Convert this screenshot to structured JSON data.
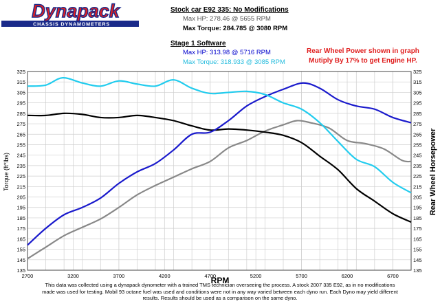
{
  "logo": {
    "brand": "Dynapack",
    "tagline": "CHASSIS DYNAMOMETERS"
  },
  "header": {
    "stock_title": "Stock car E92 335: No Modifications",
    "stock_hp": "Max HP: 278.46 @ 5655 RPM",
    "stock_torque": "Max Torque: 284.785 @ 3080 RPM",
    "stage_title": "Stage 1 Software",
    "stage_hp": "Max HP: 313.98 @ 5716 RPM",
    "stage_torque": "Max Torque: 318.933 @ 3085 RPM"
  },
  "note": {
    "line1": "Rear Wheel Power shown in graph",
    "line2": "Mutiply By 17% to get Engine HP."
  },
  "footer": {
    "line1": "This data was collected using a dynapack dynometer with a trained TMS technician overseeing the process.  A stock 2007 335 E92,  as in no modifications",
    "line2": "made was used for testing.  Mobil 93 octane fuel was used and conditions were not in any way varied between each dyno run. Each Dyno may yield different",
    "line3": "results. Results should be used as a comparison on the same dyno."
  },
  "colors": {
    "stock_hp": "#888888",
    "stock_torque": "#000000",
    "stage_hp": "#1a1acc",
    "stage_torque": "#22ccee",
    "grid": "#cfcfcf",
    "logo_red": "#e02020",
    "logo_blue": "#1a2a8a"
  },
  "chart_data": {
    "type": "line",
    "title": "",
    "xlabel": "RPM",
    "ylabel_left": "Torque (ft*lbs)",
    "ylabel_right": "Rear Wheel Horsepower",
    "xlim": [
      2700,
      6900
    ],
    "ylim": [
      135,
      325
    ],
    "x_ticks": [
      2700,
      3200,
      3700,
      4200,
      4700,
      5200,
      5700,
      6200,
      6700
    ],
    "y_ticks": [
      135,
      145,
      155,
      165,
      175,
      185,
      195,
      205,
      215,
      225,
      235,
      245,
      255,
      265,
      275,
      285,
      295,
      305,
      315,
      325
    ],
    "grid": true,
    "series": [
      {
        "name": "Stock HP",
        "color_key": "stock_hp",
        "x": [
          2700,
          2900,
          3100,
          3300,
          3500,
          3700,
          3900,
          4100,
          4300,
          4500,
          4700,
          4900,
          5100,
          5300,
          5500,
          5650,
          5800,
          6000,
          6200,
          6400,
          6600,
          6800,
          6900
        ],
        "y": [
          146,
          157,
          168,
          176,
          184,
          195,
          207,
          216,
          224,
          232,
          239,
          252,
          259,
          268,
          274,
          278,
          276,
          271,
          259,
          256,
          251,
          240,
          239
        ]
      },
      {
        "name": "Stock Torque",
        "color_key": "stock_torque",
        "x": [
          2700,
          2900,
          3100,
          3300,
          3500,
          3700,
          3900,
          4100,
          4300,
          4500,
          4700,
          4900,
          5100,
          5300,
          5500,
          5700,
          5900,
          6100,
          6300,
          6500,
          6700,
          6900
        ],
        "y": [
          283,
          283,
          285,
          284,
          281,
          281,
          283,
          281,
          278,
          273,
          269,
          270,
          269,
          267,
          264,
          257,
          244,
          231,
          213,
          201,
          189,
          181
        ]
      },
      {
        "name": "Stage 1 HP",
        "color_key": "stage_hp",
        "x": [
          2700,
          2900,
          3100,
          3300,
          3500,
          3700,
          3900,
          4100,
          4300,
          4500,
          4700,
          4900,
          5100,
          5300,
          5500,
          5716,
          5900,
          6100,
          6300,
          6500,
          6700,
          6900
        ],
        "y": [
          159,
          175,
          188,
          195,
          204,
          218,
          229,
          237,
          250,
          265,
          267,
          278,
          292,
          301,
          308,
          314,
          309,
          298,
          292,
          289,
          281,
          276
        ]
      },
      {
        "name": "Stage 1 Torque",
        "color_key": "stage_torque",
        "x": [
          2700,
          2900,
          3085,
          3300,
          3500,
          3700,
          3900,
          4100,
          4300,
          4500,
          4700,
          4900,
          5100,
          5300,
          5500,
          5700,
          5900,
          6100,
          6300,
          6500,
          6700,
          6900
        ],
        "y": [
          311,
          312,
          319,
          314,
          311,
          316,
          313,
          311,
          317,
          309,
          304,
          305,
          306,
          303,
          295,
          289,
          276,
          258,
          241,
          234,
          219,
          209
        ]
      }
    ]
  }
}
